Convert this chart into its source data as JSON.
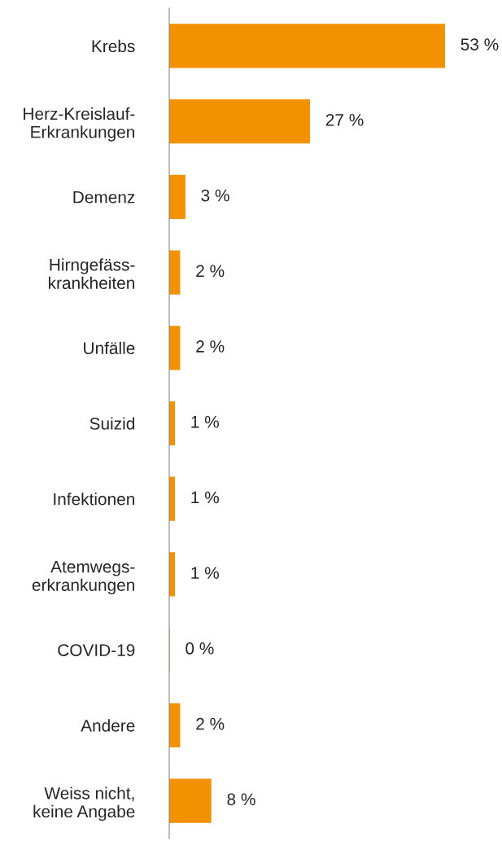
{
  "chart_data": {
    "type": "bar",
    "orientation": "horizontal",
    "categories": [
      "Krebs",
      "Herz-Kreislauf-\nErkrankungen",
      "Demenz",
      "Hirngefäss-\nkrankheiten",
      "Unfälle",
      "Suizid",
      "Infektionen",
      "Atemwegs-\nerkrankungen",
      "COVID-19",
      "Andere",
      "Weiss nicht,\nkeine Angabe"
    ],
    "values": [
      53,
      27,
      3,
      2,
      2,
      1,
      1,
      1,
      0,
      2,
      8
    ],
    "value_labels": [
      "53 %",
      "27 %",
      "3 %",
      "2 %",
      "2 %",
      "1 %",
      "1 %",
      "1 %",
      "0 %",
      "2 %",
      "8 %"
    ],
    "color": "#f39200",
    "grid": false,
    "legend": false
  }
}
